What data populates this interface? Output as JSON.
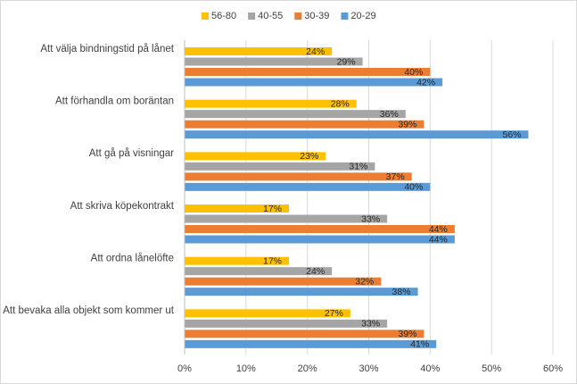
{
  "chart_data": {
    "type": "hbar",
    "categories": [
      "Att välja bindningstid på lånet",
      "Att förhandla om boräntan",
      "Att gå på visningar",
      "Att skriva köpekontrakt",
      "Att ordna lånelöfte",
      "Att bevaka alla objekt som kommer ut"
    ],
    "series": [
      {
        "name": "56-80",
        "color": "#ffc000",
        "values": [
          24,
          28,
          23,
          17,
          17,
          27
        ],
        "value_labels": [
          "24%",
          "28%",
          "23%",
          "17%",
          "17%",
          "27%"
        ]
      },
      {
        "name": "40-55",
        "color": "#a5a5a5",
        "values": [
          29,
          36,
          31,
          33,
          24,
          33
        ],
        "value_labels": [
          "29%",
          "36%",
          "31%",
          "33%",
          "24%",
          "33%"
        ]
      },
      {
        "name": "30-39",
        "color": "#ed7d31",
        "values": [
          40,
          39,
          37,
          44,
          32,
          39
        ],
        "value_labels": [
          "40%",
          "39%",
          "37%",
          "44%",
          "32%",
          "39%"
        ]
      },
      {
        "name": "20-29",
        "color": "#5b9bd5",
        "values": [
          42,
          56,
          40,
          44,
          38,
          41
        ],
        "value_labels": [
          "42%",
          "56%",
          "40%",
          "44%",
          "38%",
          "41%"
        ]
      }
    ],
    "xlim": [
      0,
      60
    ],
    "xticks": [
      {
        "value": 0,
        "label": "0%"
      },
      {
        "value": 10,
        "label": "10%"
      },
      {
        "value": 20,
        "label": "20%"
      },
      {
        "value": 30,
        "label": "30%"
      },
      {
        "value": 40,
        "label": "40%"
      },
      {
        "value": 50,
        "label": "50%"
      },
      {
        "value": 60,
        "label": "60%"
      }
    ],
    "grid": true,
    "legend": "top"
  }
}
